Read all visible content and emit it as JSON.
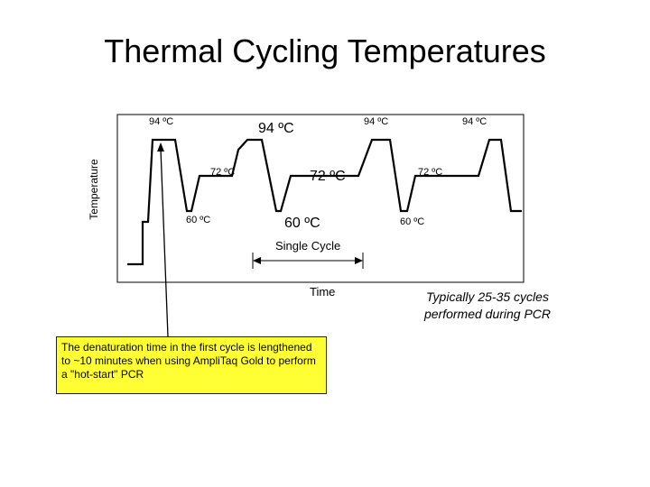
{
  "title": "Thermal Cycling Temperatures",
  "axes": {
    "y_label": "Temperature",
    "x_label": "Time"
  },
  "temps": {
    "a94": "94 ºC",
    "b94": "94 ºC",
    "c94": "94 ºC",
    "d94": "94 ºC",
    "a72": "72 ºC",
    "b72": "72 ºC",
    "c72": "72 ºC",
    "a60": "60 ºC",
    "b60": "60 ºC",
    "c60": "60 ºC"
  },
  "single_cycle": "Single Cycle",
  "cycles_note": "Typically 25-35 cycles performed during PCR",
  "callout_text": "The denaturation time in the first cycle is lengthened to ~10 minutes when using AmpliTaq Gold to perform a \"hot-start\" PCR",
  "colors": {
    "callout_bg": "#ffff33",
    "line": "#000000"
  }
}
